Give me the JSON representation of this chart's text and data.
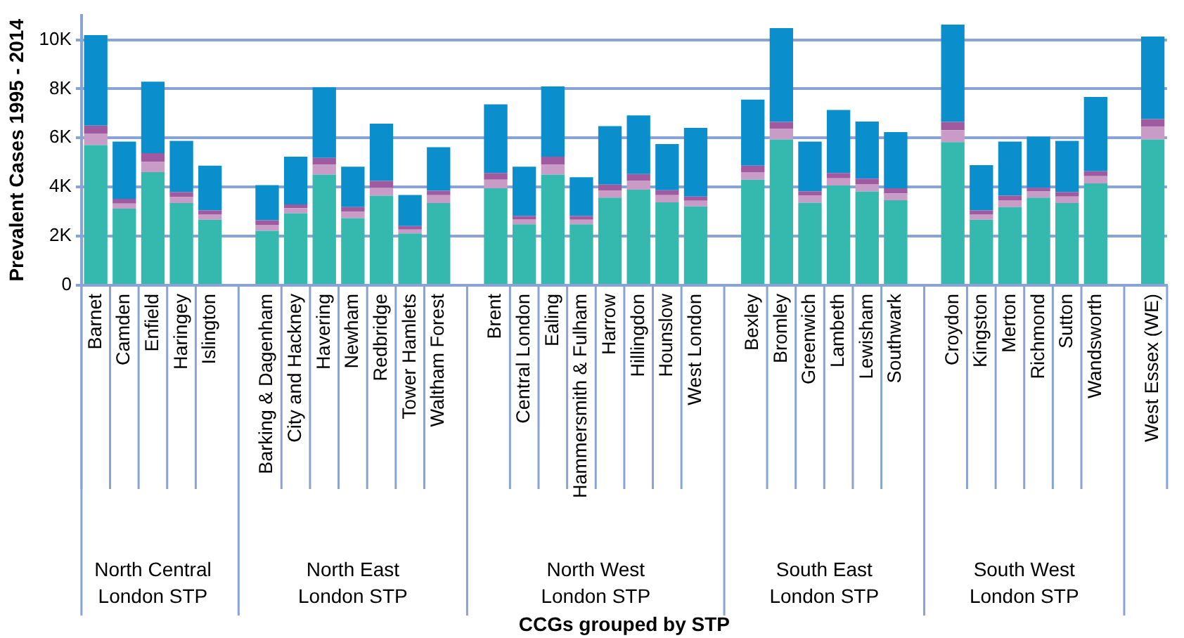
{
  "chart_data": {
    "type": "bar",
    "stacked": true,
    "ylabel": "Prevalent Cases 1995 - 2014",
    "categories": [
      "Barnet",
      "Camden",
      "Enfield",
      "Haringey",
      "Islington",
      null,
      "Barking & Dagenham",
      "City and Hackney",
      "Havering",
      "Newham",
      "Redbridge",
      "Tower Hamlets",
      "Waltham Forest",
      null,
      "Brent",
      "Central London",
      "Ealing",
      "Hammersmith & Fulham",
      "Harrow",
      "Hillingdon",
      "Hounslow",
      "West London",
      null,
      "Bexley",
      "Bromley",
      "Greenwich",
      "Lambeth",
      "Lewisham",
      "Southwark",
      null,
      "Croydon",
      "Kingston",
      "Merton",
      "Richmond",
      "Sutton",
      "Wandsworth",
      null,
      "West Essex (WE)"
    ],
    "series": [
      {
        "color": "#35b8ad",
        "values": [
          5710,
          3120,
          4610,
          3350,
          2670,
          null,
          2220,
          2930,
          4510,
          2730,
          3650,
          2110,
          3350,
          null,
          3950,
          2480,
          4510,
          2480,
          3570,
          3890,
          3380,
          3210,
          null,
          4300,
          5940,
          3360,
          4060,
          3820,
          3460,
          null,
          5830,
          2670,
          3180,
          3570,
          3350,
          4150,
          null,
          5940
        ]
      },
      {
        "color": "#c99cc8",
        "values": [
          470,
          210,
          410,
          240,
          220,
          null,
          240,
          210,
          400,
          260,
          320,
          160,
          320,
          null,
          350,
          210,
          400,
          190,
          280,
          360,
          290,
          230,
          null,
          310,
          430,
          290,
          300,
          300,
          280,
          null,
          490,
          220,
          280,
          250,
          260,
          290,
          null,
          510
        ]
      },
      {
        "color": "#a05ba0",
        "values": [
          320,
          190,
          360,
          210,
          160,
          null,
          190,
          150,
          280,
          190,
          280,
          140,
          180,
          null,
          270,
          130,
          330,
          150,
          250,
          280,
          200,
          170,
          null,
          260,
          280,
          180,
          210,
          220,
          210,
          null,
          330,
          160,
          190,
          150,
          190,
          200,
          null,
          320
        ]
      },
      {
        "color": "#0a8fcc",
        "values": [
          3690,
          2330,
          2910,
          2080,
          1820,
          null,
          1430,
          1950,
          2870,
          1650,
          2330,
          1270,
          1770,
          null,
          2800,
          2010,
          2860,
          1580,
          2380,
          2390,
          1880,
          2800,
          null,
          2690,
          3820,
          2020,
          2570,
          2330,
          2290,
          null,
          3970,
          1840,
          2200,
          2080,
          2080,
          3030,
          null,
          3360
        ]
      }
    ],
    "ylim": [
      0,
      11000
    ],
    "yticks": [
      0,
      {
        "value": 2000,
        "label": "2K"
      },
      {
        "value": 4000,
        "label": "4K"
      },
      {
        "value": 6000,
        "label": "6K"
      },
      {
        "value": 8000,
        "label": "8K"
      },
      {
        "value": 10000,
        "label": "10K"
      }
    ],
    "grid": "y",
    "annotations": [
      "North Central\nLondon STP",
      "North East\nLondon STP",
      "North West\nLondon STP",
      "South East\nLondon STP",
      "South West\nLondon STP",
      "CCGs grouped by STP"
    ]
  }
}
